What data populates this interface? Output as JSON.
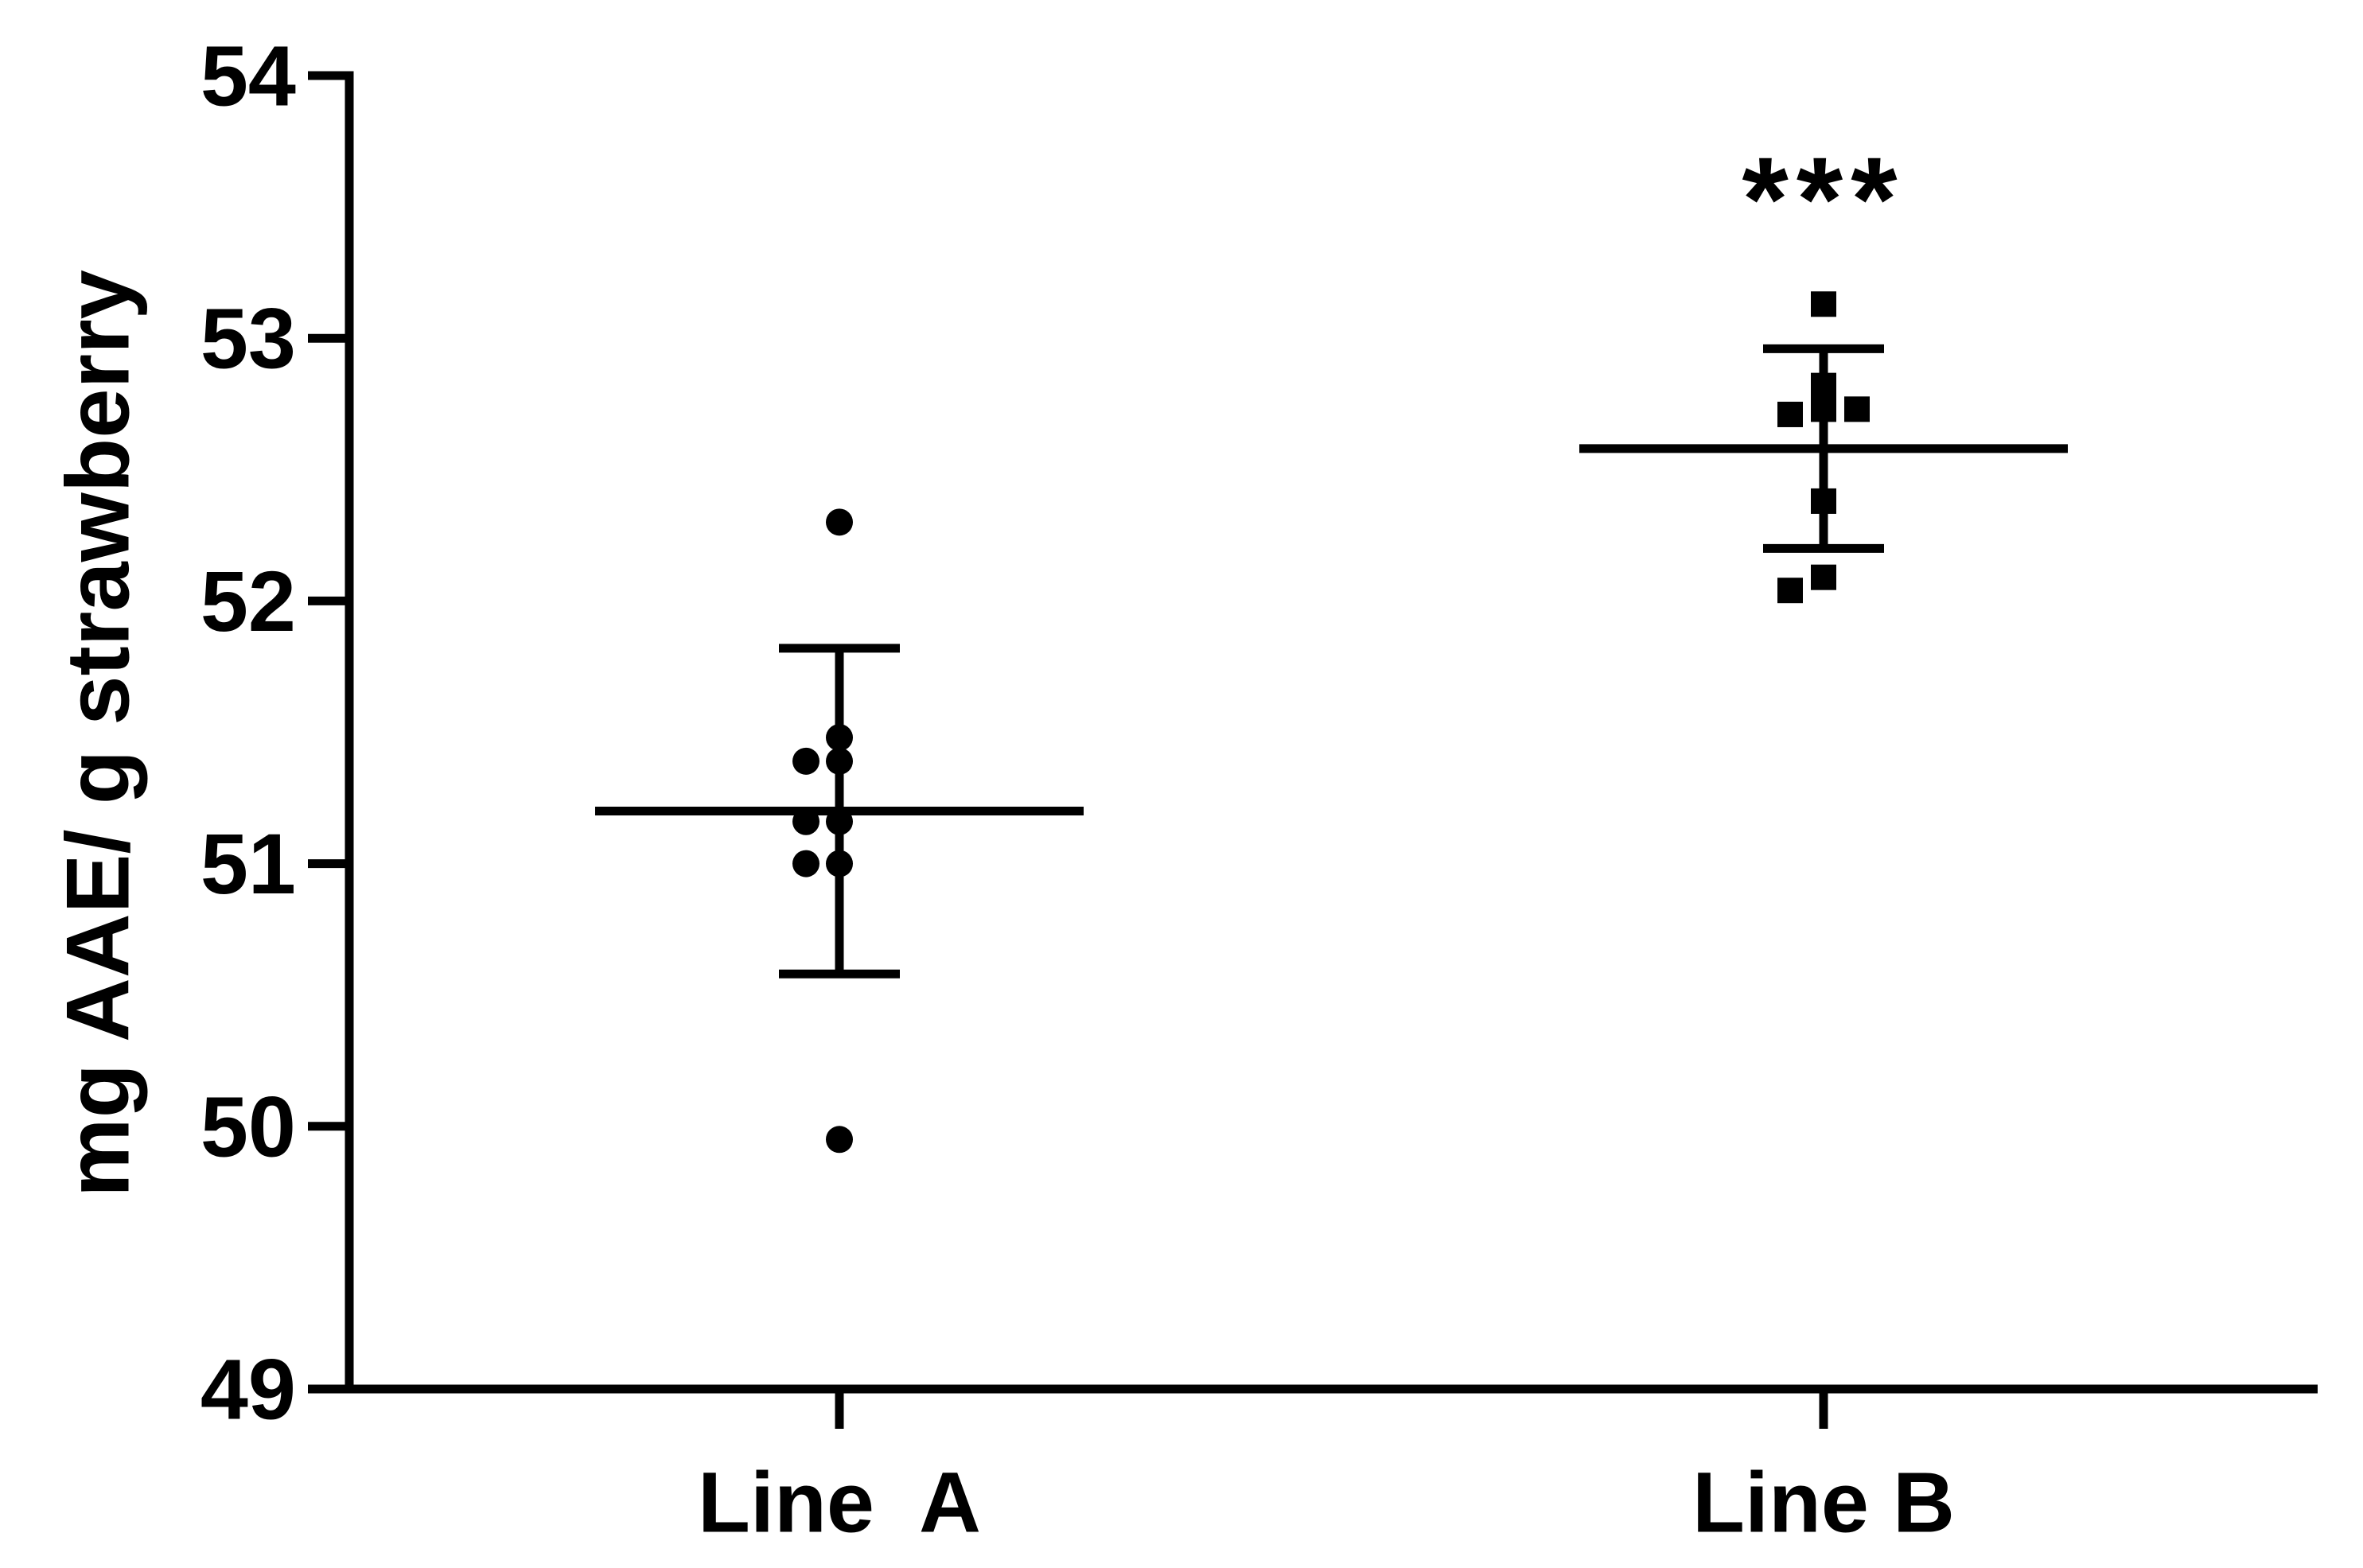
{
  "chart_data": {
    "type": "dot_plot",
    "y_label": "mg AAE/ g strawberry",
    "ylim": [
      49,
      54
    ],
    "yticks": [
      49,
      50,
      51,
      52,
      53,
      54
    ],
    "color": "#000000",
    "groups": [
      {
        "category": "Line  A",
        "marker": "circle",
        "values": [
          52.3,
          51.48,
          51.39,
          51.39,
          51.16,
          51.16,
          51.0,
          51.0,
          49.95
        ],
        "mean": 51.2,
        "error": 0.62
      },
      {
        "category": "Line B",
        "marker": "square",
        "values": [
          53.13,
          52.82,
          52.73,
          52.71,
          52.73,
          52.38,
          52.09,
          52.04
        ],
        "mean": 52.58,
        "error": 0.38,
        "annotation": "***"
      }
    ]
  }
}
